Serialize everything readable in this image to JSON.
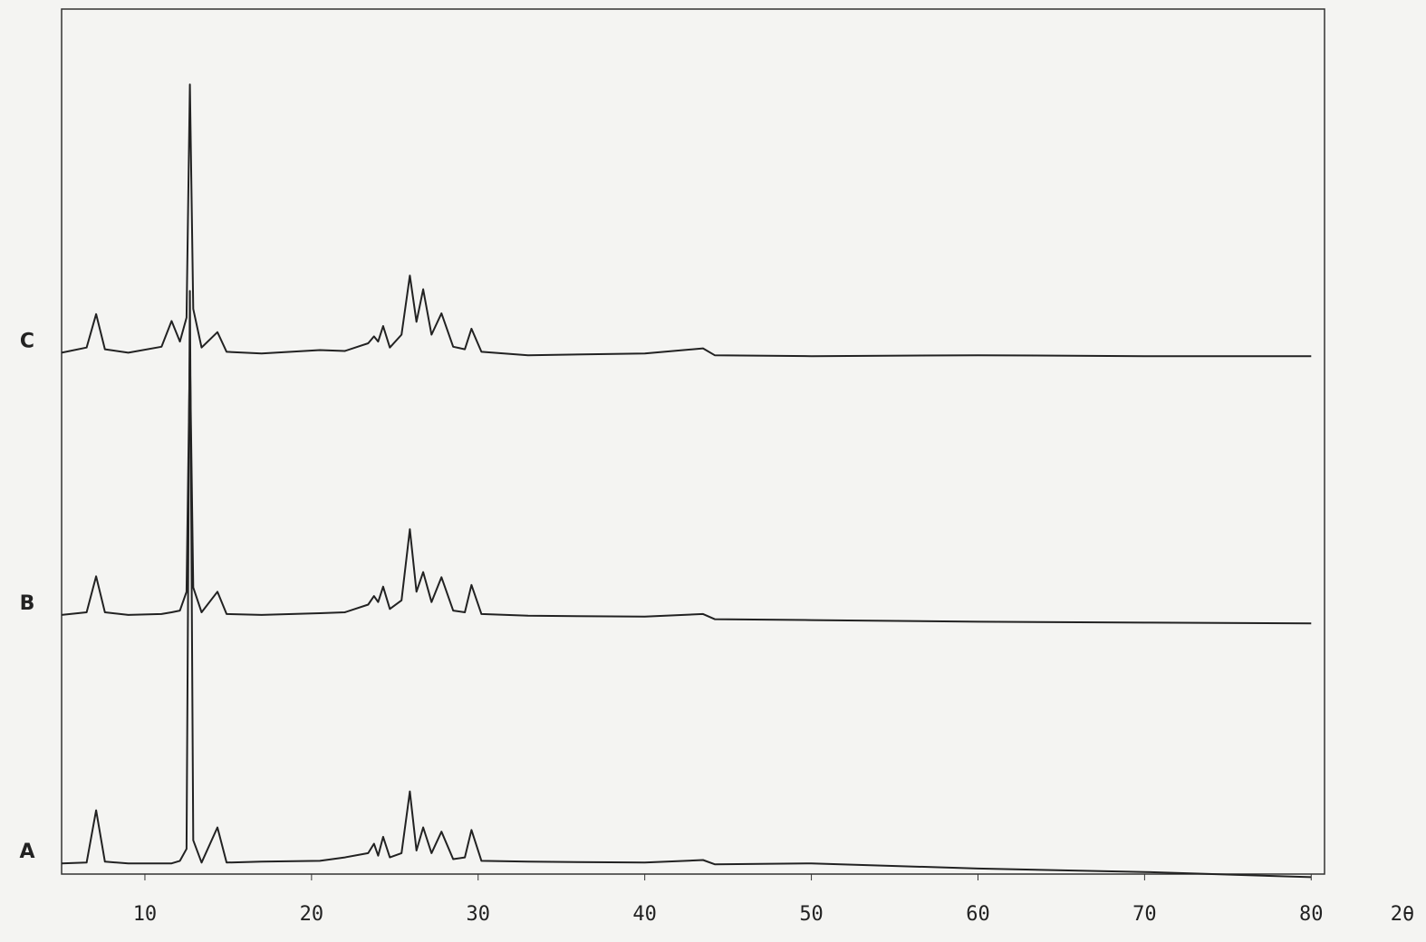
{
  "chart_data": {
    "type": "line",
    "x_label": "2θ",
    "x": [
      5,
      6.5,
      7.07,
      7.6,
      9,
      11,
      11.6,
      12.1,
      12.5,
      12.7,
      12.9,
      13.4,
      14.35,
      14.9,
      17,
      20.5,
      22,
      23.4,
      23.75,
      24.0,
      24.3,
      24.7,
      25.4,
      25.9,
      26.3,
      26.7,
      27.2,
      27.8,
      28.5,
      29.2,
      29.6,
      30.2,
      33,
      40,
      43.5,
      44.2,
      50,
      60,
      70,
      80
    ],
    "series": [
      {
        "name": "A",
        "color": "#222222",
        "values": [
          0.3,
          0.4,
          6.5,
          0.5,
          0.3,
          0.3,
          0.3,
          0.6,
          2,
          67.1,
          3,
          0.4,
          4.5,
          0.4,
          0.5,
          0.6,
          1,
          1.5,
          2.6,
          1.2,
          3.4,
          1,
          1.5,
          8.7,
          1.8,
          4.5,
          1.5,
          4,
          0.8,
          1,
          4.2,
          0.6,
          0.5,
          0.4,
          0.7,
          0.2,
          0.3,
          -0.3,
          -0.7,
          -1.3
        ]
      },
      {
        "name": "B",
        "color": "#222222",
        "values": [
          29.3,
          29.6,
          33.8,
          29.6,
          29.3,
          29.4,
          29.6,
          29.8,
          32,
          60.2,
          32.5,
          29.6,
          32,
          29.4,
          29.3,
          29.5,
          29.6,
          30.5,
          31.5,
          30.8,
          32.6,
          30,
          31,
          39.3,
          32,
          34.3,
          30.8,
          33.7,
          29.8,
          29.6,
          32.8,
          29.4,
          29.2,
          29.1,
          29.4,
          28.8,
          28.7,
          28.5,
          28.4,
          28.3
        ]
      },
      {
        "name": "C",
        "color": "#222222",
        "values": [
          59.9,
          60.5,
          64.4,
          60.3,
          59.9,
          60.6,
          63.6,
          61.2,
          64,
          91.2,
          65,
          60.5,
          62.3,
          60,
          59.8,
          60.2,
          60.1,
          61,
          61.8,
          61.2,
          63,
          60.5,
          62,
          68.9,
          63.5,
          67.3,
          62,
          64.5,
          60.6,
          60.3,
          62.7,
          60,
          59.6,
          59.8,
          60.4,
          59.6,
          59.5,
          59.6,
          59.5,
          59.5
        ]
      }
    ],
    "xlim": [
      5,
      80.8
    ],
    "ylim": [
      -2,
      100
    ],
    "xticks": [
      10,
      20,
      30,
      40,
      50,
      60,
      70,
      80
    ]
  }
}
